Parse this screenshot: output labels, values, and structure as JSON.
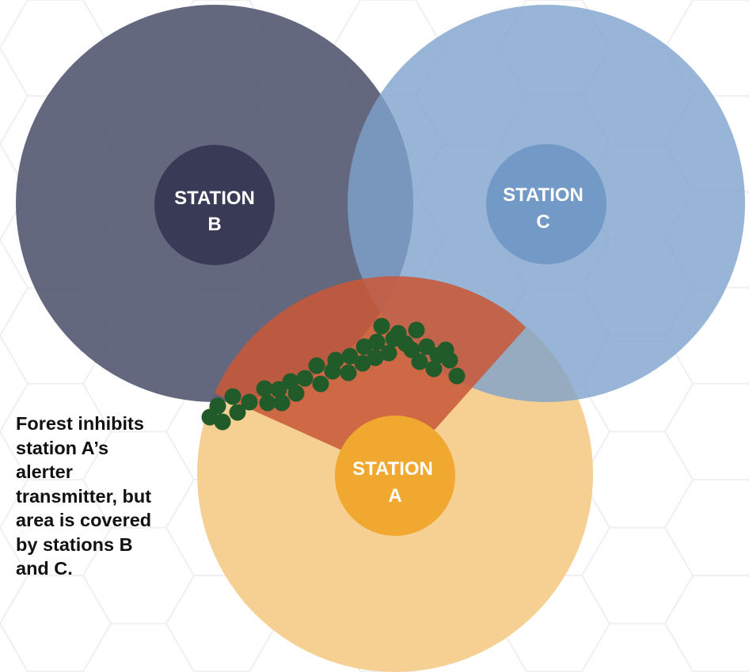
{
  "stations": {
    "a": {
      "line1": "STATION",
      "line2": "A"
    },
    "b": {
      "line1": "STATION",
      "line2": "B"
    },
    "c": {
      "line1": "STATION",
      "line2": "C"
    }
  },
  "caption": {
    "lines": [
      "Forest inhibits",
      "station A’s",
      "alerter",
      "transmitter, but",
      "area is covered",
      "by stations B",
      "and C."
    ]
  },
  "colors": {
    "coverage_a": "#F5CE8E",
    "coverage_b": "#4A4F6A",
    "coverage_c": "#8AABD1",
    "station_a": "#F0A830",
    "station_b": "#393B56",
    "station_c": "#7399C6",
    "blocked_zone": "#C05A38",
    "forest_tree": "#215B2A",
    "background_pattern": "#F1F1F4"
  }
}
